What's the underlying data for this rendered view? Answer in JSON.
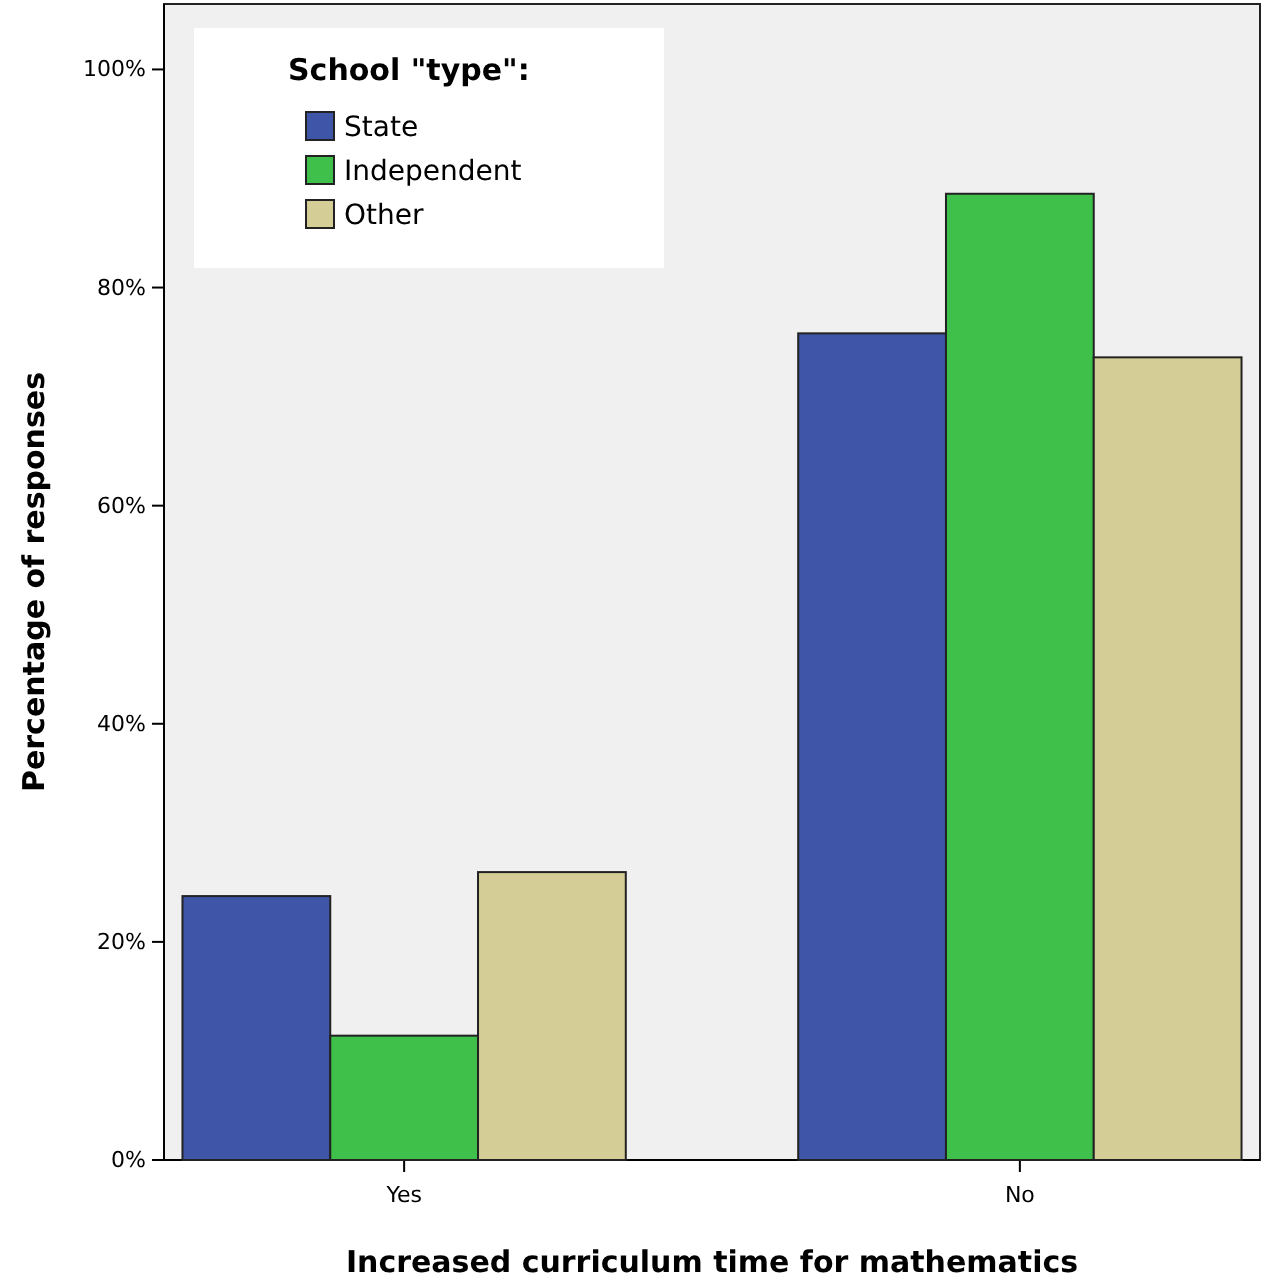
{
  "chart_data": {
    "type": "bar",
    "xlabel": "Increased curriculum time for mathematics",
    "ylabel": "Percentage of responses",
    "legend_title": "School \"type\":",
    "categories": [
      "Yes",
      "No"
    ],
    "series": [
      {
        "name": "State",
        "color": "#3e55a8",
        "values": [
          24.2,
          75.8
        ]
      },
      {
        "name": "Independent",
        "color": "#3fc04a",
        "values": [
          11.4,
          88.6
        ]
      },
      {
        "name": "Other",
        "color": "#d4cd96",
        "values": [
          26.4,
          73.6
        ]
      }
    ],
    "ylim": [
      0,
      106
    ],
    "yticks": [
      {
        "value": 0,
        "label": "0%"
      },
      {
        "value": 20,
        "label": "20%"
      },
      {
        "value": 40,
        "label": "40%"
      },
      {
        "value": 60,
        "label": "60%"
      },
      {
        "value": 80,
        "label": "80%"
      },
      {
        "value": 100,
        "label": "100%"
      }
    ],
    "grid": false,
    "legend": "top left"
  }
}
